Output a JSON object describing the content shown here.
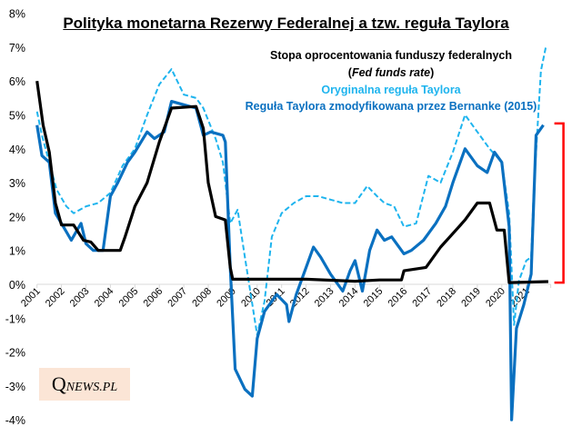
{
  "chart_data": {
    "type": "line",
    "title": "Polityka monetarna Rezerwy Federalnej a tzw. reguła Taylora",
    "xlabel": "",
    "ylabel": "",
    "ylim": [
      -4,
      8
    ],
    "xlim": [
      2001,
      2022
    ],
    "y_ticks": [
      "8%",
      "7%",
      "6%",
      "5%",
      "4%",
      "3%",
      "2%",
      "1%",
      "0%",
      "-1%",
      "-2%",
      "-3%",
      "-4%"
    ],
    "x_ticks": [
      "2001",
      "2002",
      "2003",
      "2004",
      "2005",
      "2006",
      "2007",
      "2008",
      "2009",
      "2010",
      "2011",
      "2012",
      "2013",
      "2014",
      "2015",
      "2016",
      "2017",
      "2018",
      "2019",
      "2020",
      "2021"
    ],
    "legend": {
      "fed_line1": "Stopa oprocentowania funduszy federalnych",
      "fed_line2": "Fed funds rate",
      "original": "Oryginalna reguła Taylora",
      "bernanke": "Reguła Taylora  zmodyfikowana przez Bernanke (2015)"
    },
    "series": [
      {
        "name": "Stopa oprocentowania funduszy federalnych (Fed funds rate)",
        "color": "#000000",
        "style": "solid",
        "x": [
          2001,
          2001.25,
          2001.5,
          2001.75,
          2002,
          2002.5,
          2002.9,
          2003.2,
          2003.5,
          2004.4,
          2004.6,
          2005,
          2005.5,
          2006,
          2006.5,
          2007.5,
          2007.8,
          2008,
          2008.3,
          2008.7,
          2008.9,
          2009,
          2010,
          2011,
          2012,
          2013,
          2014,
          2015,
          2015.9,
          2016,
          2016.9,
          2017.5,
          2018,
          2018.5,
          2019,
          2019.5,
          2019.8,
          2020.1,
          2020.3,
          2021.9
        ],
        "y": [
          6.0,
          4.7,
          3.9,
          2.4,
          1.75,
          1.75,
          1.3,
          1.25,
          1.0,
          1.0,
          1.4,
          2.3,
          3.0,
          4.2,
          5.2,
          5.25,
          4.6,
          3.0,
          2.0,
          1.9,
          0.5,
          0.15,
          0.15,
          0.15,
          0.15,
          0.12,
          0.09,
          0.13,
          0.13,
          0.4,
          0.5,
          1.1,
          1.5,
          1.9,
          2.4,
          2.4,
          1.6,
          1.6,
          0.05,
          0.08
        ]
      },
      {
        "name": "Oryginalna reguła Taylora",
        "color": "#1eb4ee",
        "style": "dashed",
        "x": [
          2001,
          2001.2,
          2001.5,
          2001.8,
          2002.2,
          2002.5,
          2003,
          2003.5,
          2004,
          2004.5,
          2005,
          2005.5,
          2006,
          2006.5,
          2007,
          2007.5,
          2007.8,
          2008.3,
          2008.6,
          2008.9,
          2009.2,
          2009.5,
          2010,
          2010.3,
          2010.6,
          2011,
          2011.5,
          2012,
          2012.5,
          2013,
          2013.5,
          2014,
          2014.5,
          2014.9,
          2015.2,
          2015.6,
          2016,
          2016.5,
          2017,
          2017.5,
          2018,
          2018.5,
          2019,
          2019.5,
          2020,
          2020.3,
          2020.5,
          2020.7,
          2021,
          2021.2,
          2021.3,
          2021.6,
          2021.8
        ],
        "y": [
          5.1,
          4.4,
          3.6,
          2.8,
          2.3,
          2.1,
          2.3,
          2.4,
          2.7,
          3.5,
          4.0,
          5.0,
          5.9,
          6.35,
          5.6,
          5.5,
          5.2,
          4.3,
          3.6,
          1.8,
          2.2,
          0.8,
          -1.5,
          -0.5,
          1.4,
          2.1,
          2.4,
          2.6,
          2.6,
          2.5,
          2.4,
          2.4,
          2.9,
          2.6,
          2.4,
          2.3,
          1.7,
          1.8,
          3.2,
          3.0,
          3.9,
          5.0,
          4.5,
          4.0,
          3.6,
          2.1,
          -1.2,
          0.1,
          0.7,
          0.8,
          2.7,
          6.3,
          7.0
        ]
      },
      {
        "name": "Reguła Taylora zmodyfikowana przez Bernanke (2015)",
        "color": "#0a70c0",
        "style": "solid",
        "x": [
          2001,
          2001.2,
          2001.5,
          2001.75,
          2002,
          2002.4,
          2002.8,
          2003,
          2003.3,
          2003.7,
          2004,
          2004.3,
          2004.7,
          2005,
          2005.5,
          2005.8,
          2006.2,
          2006.5,
          2007,
          2007.5,
          2007.8,
          2008.1,
          2008.6,
          2008.7,
          2008.9,
          2009.1,
          2009.5,
          2009.8,
          2010,
          2010.3,
          2010.8,
          2011.2,
          2011.3,
          2011.6,
          2012,
          2012.3,
          2012.6,
          2013,
          2013.5,
          2013.8,
          2014,
          2014.3,
          2014.6,
          2014.9,
          2015.2,
          2015.5,
          2016,
          2016.3,
          2016.8,
          2017.3,
          2017.7,
          2018,
          2018.5,
          2019,
          2019.4,
          2019.7,
          2020,
          2020.3,
          2020.4,
          2020.6,
          2020.9,
          2021.2,
          2021.4,
          2021.7
        ],
        "y": [
          4.7,
          3.8,
          3.6,
          2.1,
          1.8,
          1.3,
          1.8,
          1.2,
          1.0,
          1.0,
          2.6,
          3.0,
          3.6,
          3.9,
          4.5,
          4.3,
          4.5,
          5.4,
          5.3,
          5.2,
          4.4,
          4.5,
          4.4,
          4.2,
          0.5,
          -2.5,
          -3.1,
          -3.3,
          -1.6,
          -0.8,
          -0.3,
          -0.6,
          -1.1,
          -0.3,
          0.5,
          1.1,
          0.8,
          0.3,
          -0.2,
          0.4,
          0.7,
          -0.2,
          1.0,
          1.6,
          1.3,
          1.4,
          0.9,
          1.0,
          1.3,
          1.8,
          2.3,
          3.0,
          4.0,
          3.5,
          3.3,
          3.9,
          3.6,
          1.7,
          -4.0,
          -1.3,
          -0.6,
          0.3,
          4.4,
          4.7
        ]
      }
    ],
    "annotations": [
      {
        "type": "bracket",
        "color": "#ff0000",
        "from": 0.05,
        "to": 4.75
      }
    ],
    "grid": false,
    "legend_placement": "top-right"
  },
  "watermark": {
    "big": "Q",
    "small": "NEWS.PL"
  }
}
